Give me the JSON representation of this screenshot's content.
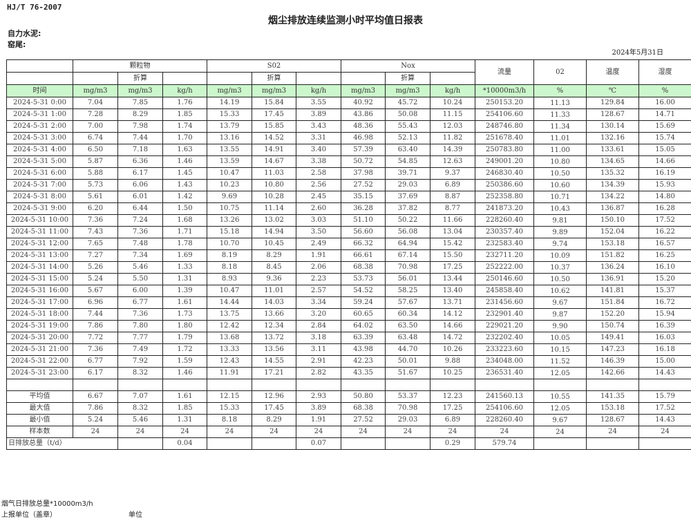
{
  "header": {
    "standard": "HJ/T  76-2007",
    "title": "烟尘排放连续监测小时平均值日报表",
    "company": "自力水泥:",
    "location": "窑尾:",
    "date": "2024年5月31日"
  },
  "table": {
    "groups": {
      "particulate": "颗粒物",
      "so2": "S02",
      "nox": "Nox",
      "flow": "流量",
      "o2": "02",
      "temp": "温度",
      "humidity": "湿度"
    },
    "converted_label": "折算",
    "units": [
      "时间",
      "mg/m3",
      "mg/m3",
      "kg/h",
      "mg/m3",
      "mg/m3",
      "kg/h",
      "mg/m3",
      "mg/m3",
      "kg/h",
      "*10000m3/h",
      "%",
      "℃",
      "%"
    ],
    "rows": [
      [
        "2024-5-31 0:00",
        "7.04",
        "7.85",
        "1.76",
        "14.19",
        "15.84",
        "3.55",
        "40.92",
        "45.72",
        "10.24",
        "250153.20",
        "11.13",
        "129.84",
        "16.00"
      ],
      [
        "2024-5-31 1:00",
        "7.28",
        "8.29",
        "1.85",
        "15.33",
        "17.45",
        "3.89",
        "43.86",
        "50.08",
        "11.15",
        "254106.60",
        "11.33",
        "128.67",
        "14.71"
      ],
      [
        "2024-5-31 2:00",
        "7.00",
        "7.98",
        "1.74",
        "13.79",
        "15.85",
        "3.43",
        "48.36",
        "55.43",
        "12.03",
        "248746.80",
        "11.34",
        "130.14",
        "15.69"
      ],
      [
        "2024-5-31 3:00",
        "6.74",
        "7.44",
        "1.70",
        "13.16",
        "14.52",
        "3.31",
        "46.98",
        "52.13",
        "11.82",
        "251678.40",
        "11.01",
        "132.16",
        "15.74"
      ],
      [
        "2024-5-31 4:00",
        "6.50",
        "7.18",
        "1.63",
        "13.55",
        "14.91",
        "3.40",
        "57.39",
        "63.40",
        "14.39",
        "250783.80",
        "11.00",
        "133.61",
        "15.05"
      ],
      [
        "2024-5-31 5:00",
        "5.87",
        "6.36",
        "1.46",
        "13.59",
        "14.67",
        "3.38",
        "50.72",
        "54.85",
        "12.63",
        "249001.20",
        "10.80",
        "134.65",
        "14.66"
      ],
      [
        "2024-5-31 6:00",
        "5.88",
        "6.17",
        "1.45",
        "10.47",
        "11.03",
        "2.58",
        "37.98",
        "39.71",
        "9.37",
        "246830.40",
        "10.50",
        "135.32",
        "16.19"
      ],
      [
        "2024-5-31 7:00",
        "5.73",
        "6.06",
        "1.43",
        "10.23",
        "10.80",
        "2.56",
        "27.52",
        "29.03",
        "6.89",
        "250386.60",
        "10.60",
        "134.39",
        "15.93"
      ],
      [
        "2024-5-31 8:00",
        "5.61",
        "6.01",
        "1.42",
        "9.69",
        "10.28",
        "2.45",
        "35.15",
        "37.69",
        "8.87",
        "252358.80",
        "10.71",
        "134.22",
        "14.80"
      ],
      [
        "2024-5-31 9:00",
        "6.20",
        "6.44",
        "1.50",
        "10.75",
        "11.14",
        "2.60",
        "36.28",
        "37.82",
        "8.77",
        "241873.20",
        "10.43",
        "136.87",
        "16.28"
      ],
      [
        "2024-5-31 10:00",
        "7.36",
        "7.24",
        "1.68",
        "13.26",
        "13.02",
        "3.03",
        "51.10",
        "50.22",
        "11.66",
        "228260.40",
        "9.81",
        "150.10",
        "17.52"
      ],
      [
        "2024-5-31 11:00",
        "7.43",
        "7.36",
        "1.71",
        "15.18",
        "14.94",
        "3.50",
        "56.60",
        "56.08",
        "13.04",
        "230357.40",
        "9.89",
        "152.04",
        "16.22"
      ],
      [
        "2024-5-31 12:00",
        "7.65",
        "7.48",
        "1.78",
        "10.70",
        "10.45",
        "2.49",
        "66.32",
        "64.94",
        "15.42",
        "232583.40",
        "9.74",
        "153.18",
        "16.57"
      ],
      [
        "2024-5-31 13:00",
        "7.27",
        "7.34",
        "1.69",
        "8.19",
        "8.29",
        "1.91",
        "66.61",
        "67.14",
        "15.50",
        "232711.20",
        "10.09",
        "151.82",
        "16.25"
      ],
      [
        "2024-5-31 14:00",
        "5.26",
        "5.46",
        "1.33",
        "8.18",
        "8.45",
        "2.06",
        "68.38",
        "70.98",
        "17.25",
        "252222.00",
        "10.37",
        "136.24",
        "16.10"
      ],
      [
        "2024-5-31 15:00",
        "5.24",
        "5.50",
        "1.31",
        "8.93",
        "9.36",
        "2.23",
        "53.73",
        "56.01",
        "13.44",
        "250146.60",
        "10.50",
        "136.91",
        "15.20"
      ],
      [
        "2024-5-31 16:00",
        "5.67",
        "6.00",
        "1.39",
        "10.47",
        "11.01",
        "2.57",
        "54.52",
        "58.25",
        "13.40",
        "245858.40",
        "10.62",
        "141.81",
        "15.37"
      ],
      [
        "2024-5-31 17:00",
        "6.96",
        "6.77",
        "1.61",
        "14.44",
        "14.03",
        "3.34",
        "59.24",
        "57.67",
        "13.71",
        "231456.60",
        "9.67",
        "151.84",
        "16.72"
      ],
      [
        "2024-5-31 18:00",
        "7.44",
        "7.36",
        "1.73",
        "13.75",
        "13.66",
        "3.20",
        "60.65",
        "60.34",
        "14.12",
        "232901.40",
        "9.87",
        "152.20",
        "15.94"
      ],
      [
        "2024-5-31 19:00",
        "7.86",
        "7.80",
        "1.80",
        "12.42",
        "12.34",
        "2.84",
        "64.02",
        "63.50",
        "14.66",
        "229021.20",
        "9.90",
        "150.74",
        "16.39"
      ],
      [
        "2024-5-31 20:00",
        "7.72",
        "7.77",
        "1.79",
        "13.68",
        "13.72",
        "3.18",
        "63.39",
        "63.48",
        "14.72",
        "232202.40",
        "10.05",
        "149.41",
        "16.03"
      ],
      [
        "2024-5-31 21:00",
        "7.36",
        "7.49",
        "1.72",
        "13.33",
        "13.56",
        "3.11",
        "43.98",
        "44.70",
        "10.26",
        "233223.60",
        "10.15",
        "147.23",
        "16.18"
      ],
      [
        "2024-5-31 22:00",
        "6.77",
        "7.92",
        "1.59",
        "12.43",
        "14.55",
        "2.91",
        "42.23",
        "50.01",
        "9.88",
        "234048.00",
        "11.52",
        "146.39",
        "15.00"
      ],
      [
        "2024-5-31 23:00",
        "6.17",
        "8.32",
        "1.46",
        "11.91",
        "17.21",
        "2.82",
        "43.35",
        "51.67",
        "10.25",
        "236531.40",
        "12.05",
        "142.66",
        "14.43"
      ]
    ],
    "summary": [
      [
        "平均值",
        "6.67",
        "7.07",
        "1.61",
        "12.15",
        "12.96",
        "2.93",
        "50.80",
        "53.37",
        "12.23",
        "241560.13",
        "10.55",
        "141.35",
        "15.79"
      ],
      [
        "最大值",
        "7.86",
        "8.32",
        "1.85",
        "15.33",
        "17.45",
        "3.89",
        "68.38",
        "70.98",
        "17.25",
        "254106.60",
        "12.05",
        "153.18",
        "17.52"
      ],
      [
        "最小值",
        "5.24",
        "5.46",
        "1.31",
        "8.18",
        "8.29",
        "1.91",
        "27.52",
        "29.03",
        "6.89",
        "228260.40",
        "9.67",
        "128.67",
        "14.43"
      ],
      [
        "样本数",
        "24",
        "24",
        "24",
        "24",
        "24",
        "24",
        "24",
        "24",
        "24",
        "24",
        "24",
        "24",
        "24"
      ]
    ],
    "daily_total": {
      "label": "日排放总量（t/d）",
      "cells": [
        "",
        "0.04",
        "",
        "",
        "0.07",
        "",
        "",
        "0.29",
        "579.74",
        "",
        "",
        ""
      ]
    }
  },
  "footer": {
    "flue_gas_total": "烟气日排放总量*10000m3/h",
    "reporting_unit": "上报单位（盖章）",
    "unit": "单位"
  }
}
